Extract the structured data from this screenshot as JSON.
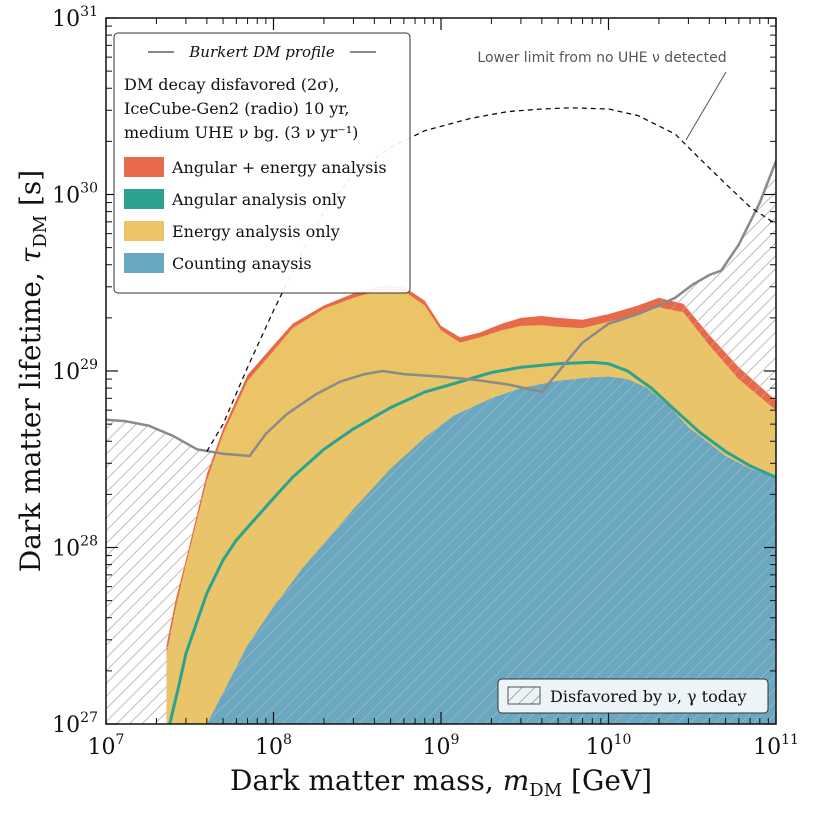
{
  "chart_data": {
    "type": "area",
    "xscale": "log",
    "yscale": "log",
    "xlim": [
      10000000.0,
      100000000000.0
    ],
    "ylim": [
      1e+27,
      1e+31
    ],
    "xlabel": "Dark matter mass, m_DM [GeV]",
    "ylabel": "Dark matter lifetime, τ_DM [s]",
    "x_ticks": [
      "10^7",
      "10^8",
      "10^9",
      "10^10",
      "10^11"
    ],
    "y_ticks": [
      "10^27",
      "10^28",
      "10^29",
      "10^30",
      "10^31"
    ],
    "legend": {
      "placement": "top-left",
      "header": "Burkert DM profile",
      "desc_line1": "DM decay disfavored (2σ),",
      "desc_line2": "IceCube-Gen2 (radio) 10 yr,",
      "desc_line3": "medium UHE ν bg. (3 ν yr⁻¹)"
    },
    "series": [
      {
        "name": "Angular + energy analysis",
        "color": "#e8694a",
        "x": [
          23000000.0,
          26000000.0,
          30000000.0,
          40000000.0,
          50000000.0,
          70000000.0,
          100000000.0,
          130000000.0,
          200000000.0,
          300000000.0,
          450000000.0,
          600000000.0,
          800000000.0,
          1000000000.0,
          1300000000.0,
          1700000000.0,
          2300000000.0,
          3000000000.0,
          4000000000.0,
          5000000000.0,
          7000000000.0,
          10000000000.0,
          15000000000.0,
          20000000000.0,
          28000000000.0,
          40000000000.0,
          60000000000.0,
          100000000000.0
        ],
        "values": [
          2.8e+27,
          5e+27,
          8.5e+27,
          2.6e+28,
          4.7e+28,
          9.5e+28,
          1.4e+29,
          1.85e+29,
          2.35e+29,
          2.75e+29,
          3.05e+29,
          3e+29,
          2.5e+29,
          1.8e+29,
          1.55e+29,
          1.65e+29,
          1.85e+29,
          2e+29,
          2.05e+29,
          2e+29,
          1.95e+29,
          2.1e+29,
          2.35e+29,
          2.6e+29,
          2.4e+29,
          1.6e+29,
          1.05e+29,
          6.8e+28
        ]
      },
      {
        "name": "Angular analysis only",
        "color": "#2ba38f",
        "x": [
          24000000.0,
          27000000.0,
          30000000.0,
          40000000.0,
          50000000.0,
          60000000.0,
          70000000.0,
          100000000.0,
          130000000.0,
          200000000.0,
          300000000.0,
          500000000.0,
          800000000.0,
          1200000000.0,
          2000000000.0,
          3000000000.0,
          5000000000.0,
          8000000000.0,
          10000000000.0,
          13000000000.0,
          18000000000.0,
          25000000000.0,
          35000000000.0,
          50000000000.0,
          70000000000.0,
          100000000000.0
        ],
        "values": [
          1e+27,
          1.6e+27,
          2.5e+27,
          5.5e+27,
          8.5e+27,
          1.1e+28,
          1.3e+28,
          1.9e+28,
          2.5e+28,
          3.6e+28,
          4.7e+28,
          6.2e+28,
          7.6e+28,
          8.5e+28,
          9.8e+28,
          1.05e+29,
          1.1e+29,
          1.12e+29,
          1.1e+29,
          1e+29,
          8e+28,
          6e+28,
          4.5e+28,
          3.5e+28,
          2.9e+28,
          2.5e+28
        ]
      },
      {
        "name": "Energy analysis only",
        "color": "#eac465",
        "x": [
          23000000.0,
          26000000.0,
          30000000.0,
          40000000.0,
          50000000.0,
          70000000.0,
          100000000.0,
          130000000.0,
          200000000.0,
          300000000.0,
          450000000.0,
          600000000.0,
          800000000.0,
          1000000000.0,
          1300000000.0,
          1700000000.0,
          2300000000.0,
          3000000000.0,
          4000000000.0,
          5000000000.0,
          7000000000.0,
          10000000000.0,
          15000000000.0,
          20000000000.0,
          28000000000.0,
          40000000000.0,
          60000000000.0,
          100000000000.0
        ],
        "values": [
          2.5e+27,
          4.5e+27,
          8e+27,
          2.4e+28,
          4.4e+28,
          8.8e+28,
          1.3e+29,
          1.75e+29,
          2.25e+29,
          2.6e+29,
          2.9e+29,
          2.85e+29,
          2.35e+29,
          1.7e+29,
          1.45e+29,
          1.55e+29,
          1.7e+29,
          1.8e+29,
          1.82e+29,
          1.78e+29,
          1.75e+29,
          1.9e+29,
          2.1e+29,
          2.3e+29,
          2.15e+29,
          1.4e+29,
          9e+28,
          6e+28
        ]
      },
      {
        "name": "Counting anaysis",
        "color": "#6aa7c1",
        "x": [
          40000000.0,
          50000000.0,
          70000000.0,
          100000000.0,
          150000000.0,
          200000000.0,
          300000000.0,
          500000000.0,
          800000000.0,
          1200000000.0,
          2000000000.0,
          3000000000.0,
          5000000000.0,
          8000000000.0,
          10000000000.0,
          13000000000.0,
          17000000000.0,
          23000000000.0,
          30000000000.0,
          40000000000.0,
          50000000000.0,
          70000000000.0,
          100000000000.0
        ],
        "values": [
          1e+27,
          1.5e+27,
          2.8e+27,
          4.6e+27,
          7.7e+27,
          1.05e+28,
          1.65e+28,
          2.8e+28,
          4.2e+28,
          5.6e+28,
          7e+28,
          8e+28,
          8.8e+28,
          9.2e+28,
          9.3e+28,
          9e+28,
          8e+28,
          6.3e+28,
          4.8e+28,
          3.9e+28,
          3.3e+28,
          2.8e+28,
          2.5e+28
        ]
      },
      {
        "name": "Disfavored by ν, γ today",
        "color": "#8a8a8a",
        "x": [
          10000000.0,
          13000000.0,
          18000000.0,
          25000000.0,
          35000000.0,
          50000000.0,
          72000000.0,
          90000000.0,
          120000000.0,
          180000000.0,
          250000000.0,
          350000000.0,
          450000000.0,
          600000000.0,
          1000000000.0,
          1600000000.0,
          2500000000.0,
          4000000000.0,
          5500000000.0,
          7000000000.0,
          10000000000.0,
          15000000000.0,
          20000000000.0,
          25000000000.0,
          32000000000.0,
          40000000000.0,
          47000000000.0,
          60000000000.0,
          80000000000.0,
          100000000000.0
        ],
        "values": [
          5.3e+28,
          5.2e+28,
          4.9e+28,
          4.3e+28,
          3.6e+28,
          3.4e+28,
          3.3e+28,
          4.4e+28,
          5.7e+28,
          7.4e+28,
          8.7e+28,
          9.6e+28,
          1e+29,
          9.6e+28,
          9.3e+28,
          8.9e+28,
          8.4e+28,
          7.6e+28,
          1.1e+29,
          1.45e+29,
          1.85e+29,
          2.1e+29,
          2.35e+29,
          2.6e+29,
          3.1e+29,
          3.5e+29,
          3.7e+29,
          5.2e+29,
          9e+29,
          1.55e+30
        ]
      },
      {
        "name": "Lower limit from no UHE ν detected",
        "color": "#111111",
        "x": [
          40000000.0,
          50000000.0,
          70000000.0,
          100000000.0,
          150000000.0,
          200000000.0,
          300000000.0,
          500000000.0,
          800000000.0,
          1500000000.0,
          2500000000.0,
          4000000000.0,
          6000000000.0,
          10000000000.0,
          15000000000.0,
          25000000000.0,
          35000000000.0,
          50000000000.0,
          70000000000.0,
          100000000000.0
        ],
        "values": [
          3.5e+28,
          5e+28,
          1.05e+29,
          2.2e+29,
          4.8e+29,
          8e+29,
          1.3e+30,
          1.85e+30,
          2.3e+30,
          2.7e+30,
          2.95e+30,
          3.05e+30,
          3.1e+30,
          3.05e+30,
          2.8e+30,
          2.2e+30,
          1.6e+30,
          1.15e+30,
          8.5e+29,
          6.8e+29
        ]
      }
    ]
  }
}
